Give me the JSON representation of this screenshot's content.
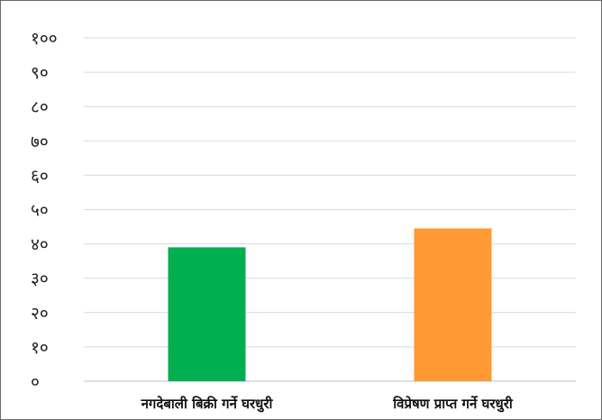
{
  "chart_data": {
    "type": "bar",
    "title": "",
    "xlabel": "",
    "ylabel": "",
    "categories": [
      "नगदेबाली बिक्री गर्ने घरधुरी",
      "विप्रेषण प्राप्त गर्ने घरधुरी"
    ],
    "values": [
      39,
      44.5
    ],
    "colors": [
      "#00b050",
      "#ff9933"
    ],
    "ylim": [
      0,
      100
    ],
    "yticks": [
      0,
      10,
      20,
      30,
      40,
      50,
      60,
      70,
      80,
      90,
      100
    ],
    "ytick_labels": [
      "०",
      "१०",
      "२०",
      "३०",
      "४०",
      "५०",
      "६०",
      "७०",
      "८०",
      "९०",
      "१००"
    ],
    "grid": true,
    "legend": "none"
  }
}
